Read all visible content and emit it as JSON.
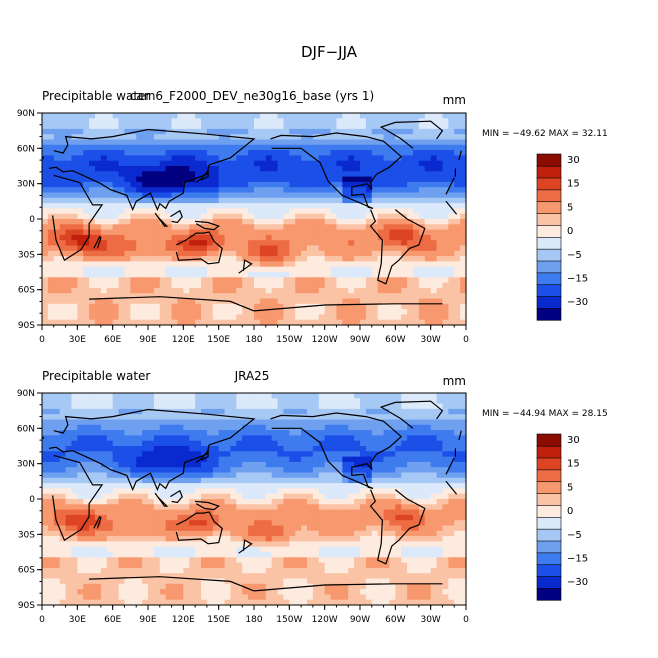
{
  "figure_title": "DJF−JJA",
  "chart_data": [
    {
      "type": "heatmap",
      "left_title": "Precipitable water",
      "center_title": "cam6_F2000_DEV_ne30g16_base (yrs 1)",
      "units": "mm",
      "min_max_text": "MIN = −49.62 MAX =  32.11",
      "min": -49.62,
      "max": 32.11,
      "lon_ticks": [
        "0",
        "30E",
        "60E",
        "90E",
        "120E",
        "150E",
        "180",
        "150W",
        "120W",
        "90W",
        "60W",
        "30W",
        "0"
      ],
      "lat_ticks": [
        "90N",
        "60N",
        "30N",
        "0",
        "30S",
        "60S",
        "90S"
      ],
      "xlim": [
        0,
        360
      ],
      "ylim": [
        -90,
        90
      ]
    },
    {
      "type": "heatmap",
      "left_title": "Precipitable water",
      "center_title": "JRA25",
      "units": "mm",
      "min_max_text": "MIN = −44.94 MAX =  28.15",
      "min": -44.94,
      "max": 28.15,
      "lon_ticks": [
        "0",
        "30E",
        "60E",
        "90E",
        "120E",
        "150E",
        "180",
        "150W",
        "120W",
        "90W",
        "60W",
        "30W",
        "0"
      ],
      "lat_ticks": [
        "90N",
        "60N",
        "30N",
        "0",
        "30S",
        "60S",
        "90S"
      ],
      "xlim": [
        0,
        360
      ],
      "ylim": [
        -90,
        90
      ]
    }
  ],
  "colorbar": {
    "colors": [
      "#000080",
      "#0a2ad0",
      "#1b4fe8",
      "#3d7bee",
      "#6fa0f0",
      "#a6c8f5",
      "#dbe9fb",
      "#fdebdf",
      "#fbc3a5",
      "#f7986f",
      "#ee6c44",
      "#dc4423",
      "#c0200c",
      "#8c0c03"
    ],
    "tick_labels": [
      "−30",
      "−15",
      "−5",
      "0",
      "5",
      "15",
      "30"
    ]
  }
}
